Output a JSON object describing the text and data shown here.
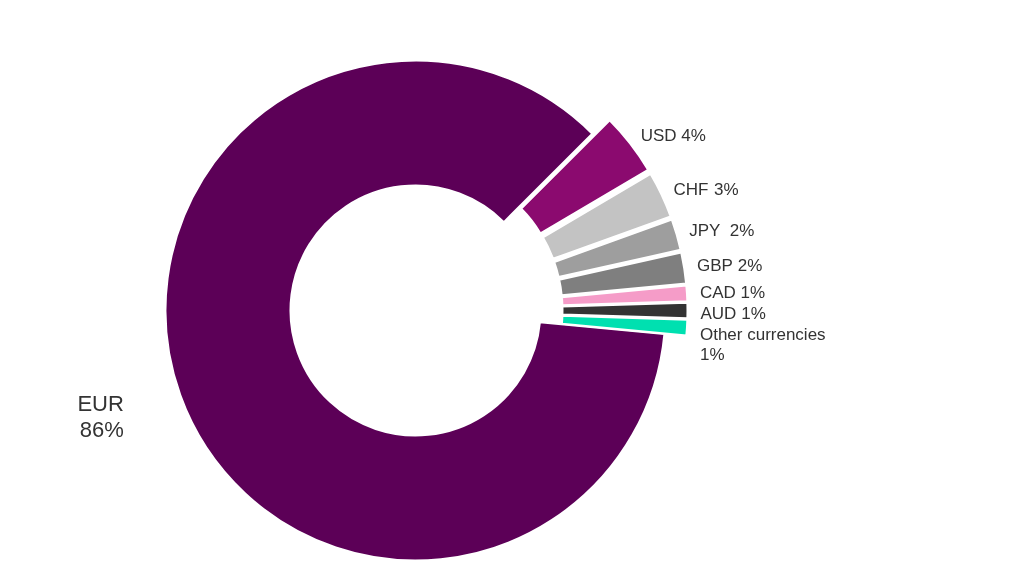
{
  "chart_data": {
    "type": "donut",
    "categories": [
      "EUR",
      "USD",
      "CHF",
      "JPY",
      "GBP",
      "CAD",
      "AUD",
      "Other currencies"
    ],
    "values": [
      86,
      4,
      3,
      2,
      2,
      1,
      1,
      1
    ],
    "value_labels": [
      "86%",
      "4%",
      "3%",
      "2%",
      "2%",
      "1%",
      "1%",
      "1%"
    ],
    "colors": [
      "#5c0057",
      "#8b0a6f",
      "#c3c3c3",
      "#9e9e9e",
      "#7f7f7f",
      "#f59cc8",
      "#333333",
      "#00e0b0"
    ]
  }
}
